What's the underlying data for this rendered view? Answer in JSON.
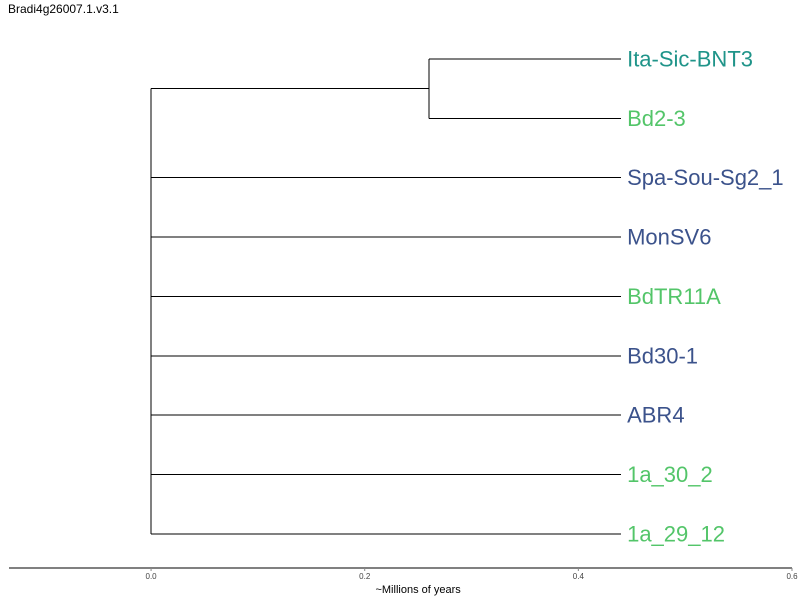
{
  "title": "Bradi4g26007.1.v3.1",
  "colors": {
    "teal": "#1f9489",
    "green": "#53c569",
    "navy": "#3b528b",
    "line": "#000000"
  },
  "chart_data": {
    "type": "dendrogram",
    "xlabel": "~Millions of years",
    "xlim": [
      -0.133,
      0.6
    ],
    "ticks": [
      {
        "value": 0.0,
        "label": "0.0"
      },
      {
        "value": 0.2,
        "label": "0.2"
      },
      {
        "value": 0.4,
        "label": "0.4"
      },
      {
        "value": 0.6,
        "label": "0.6"
      }
    ],
    "root_x": 0.0,
    "leaf_x": 0.44,
    "internal_nodes": [
      {
        "id": "clade1",
        "x": 0.26,
        "children": [
          "Ita-Sic-BNT3",
          "Bd2-3"
        ]
      }
    ],
    "leaves": [
      {
        "name": "Ita-Sic-BNT3",
        "color": "#1f9489",
        "parent": "clade1"
      },
      {
        "name": "Bd2-3",
        "color": "#53c569",
        "parent": "clade1"
      },
      {
        "name": "Spa-Sou-Sg2_1",
        "color": "#3b528b",
        "parent": "root"
      },
      {
        "name": "MonSV6",
        "color": "#3b528b",
        "parent": "root"
      },
      {
        "name": "BdTR11A",
        "color": "#53c569",
        "parent": "root"
      },
      {
        "name": "Bd30-1",
        "color": "#3b528b",
        "parent": "root"
      },
      {
        "name": "ABR4",
        "color": "#3b528b",
        "parent": "root"
      },
      {
        "name": "1a_30_2",
        "color": "#53c569",
        "parent": "root"
      },
      {
        "name": "1a_29_12",
        "color": "#53c569",
        "parent": "root"
      }
    ]
  }
}
